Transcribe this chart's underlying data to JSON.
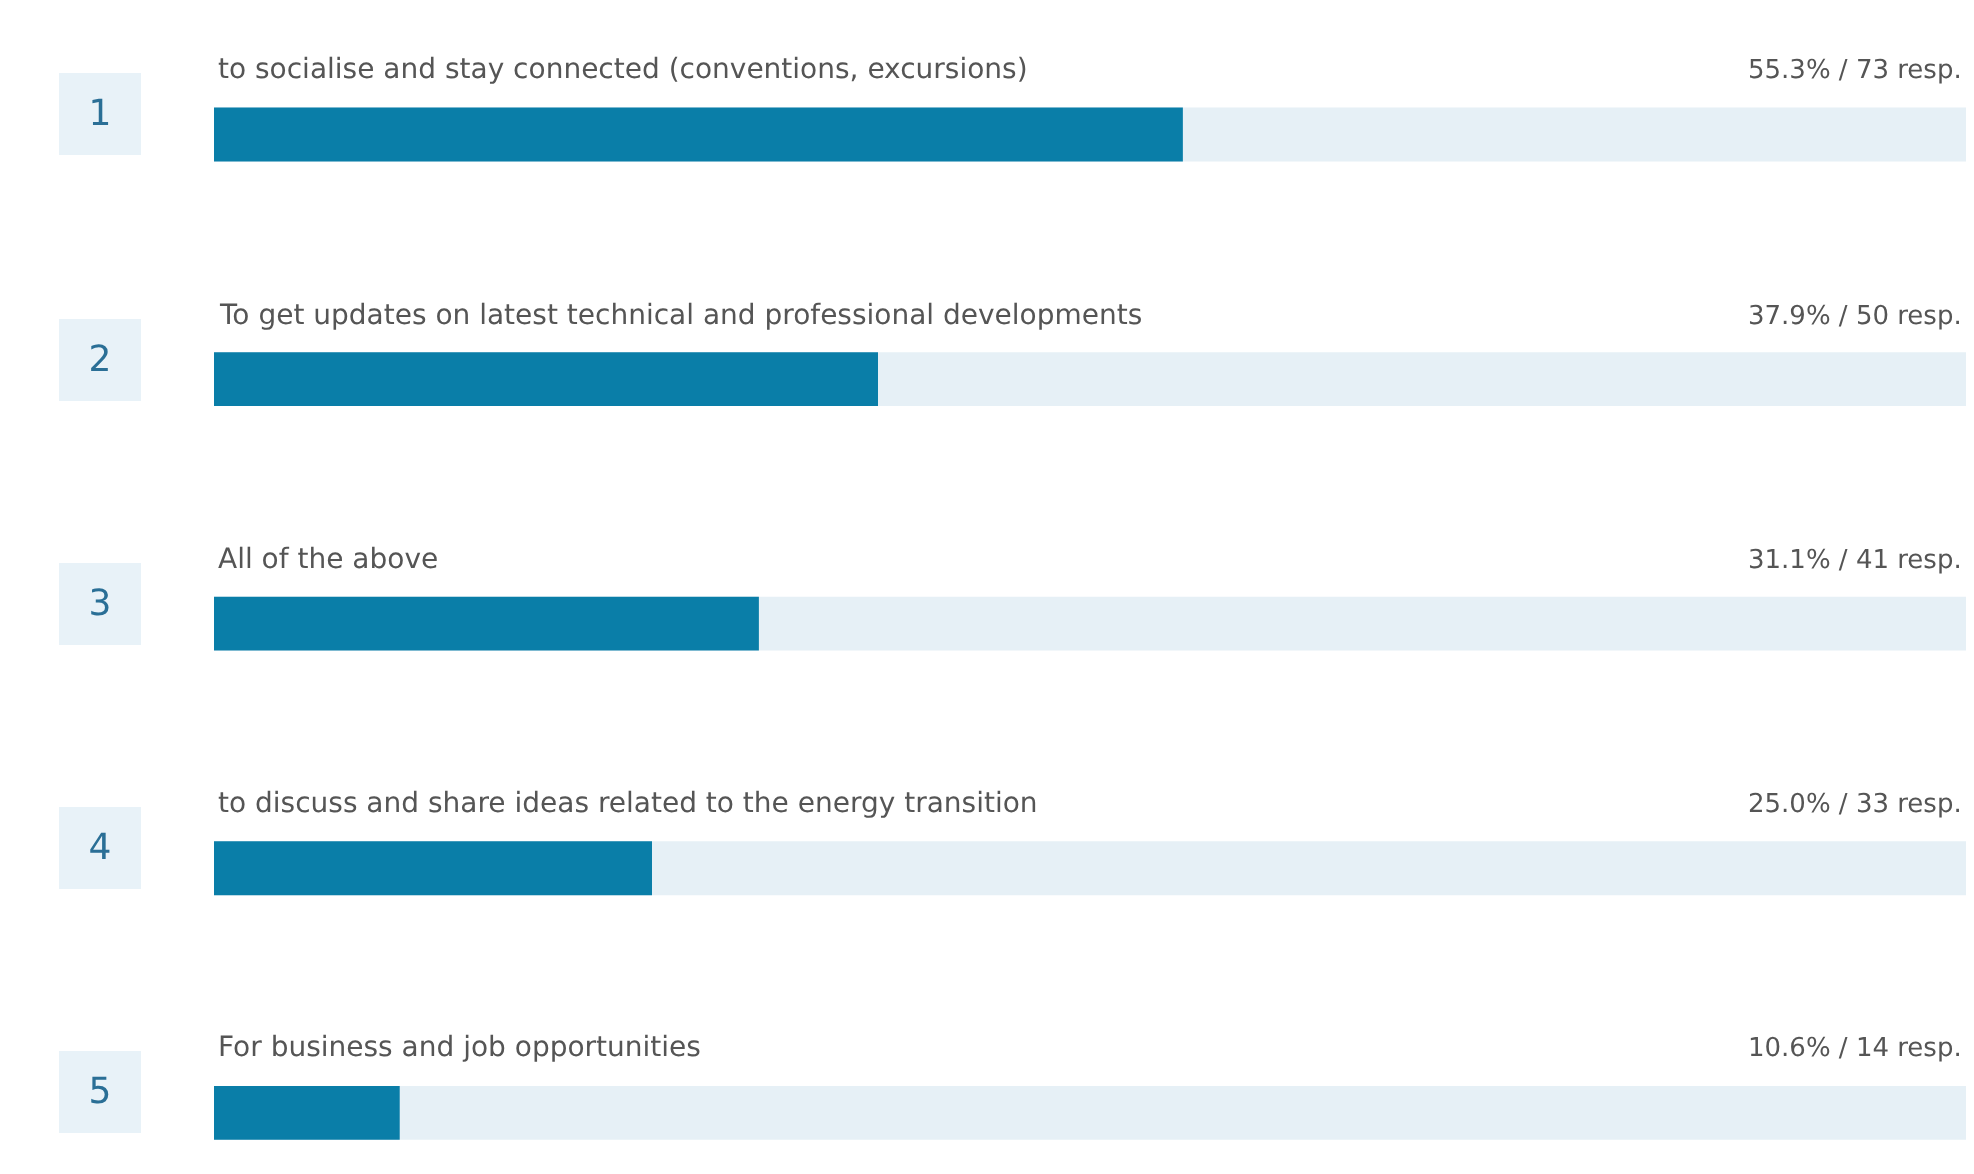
{
  "chart_data": {
    "type": "bar",
    "orientation": "horizontal",
    "xlim": [
      0,
      100
    ],
    "categories": [
      "to socialise and stay connected (conventions, excursions)",
      "To get updates on latest technical and professional developments",
      "All of the above",
      "to discuss and share ideas related to the energy transition",
      "For business and job opportunities"
    ],
    "annotations": [
      "1",
      "2",
      "3",
      "4",
      "5"
    ],
    "series": [
      {
        "color": "#0a7ea8",
        "values": [
          55.3,
          37.9,
          31.1,
          25.0,
          10.6
        ],
        "value_labels": [
          "55.3% / 73 resp.",
          "37.9% / 50 resp.",
          "31.1% / 41 resp.",
          "25.0% / 33 resp.",
          "10.6% / 14 resp."
        ]
      }
    ]
  }
}
